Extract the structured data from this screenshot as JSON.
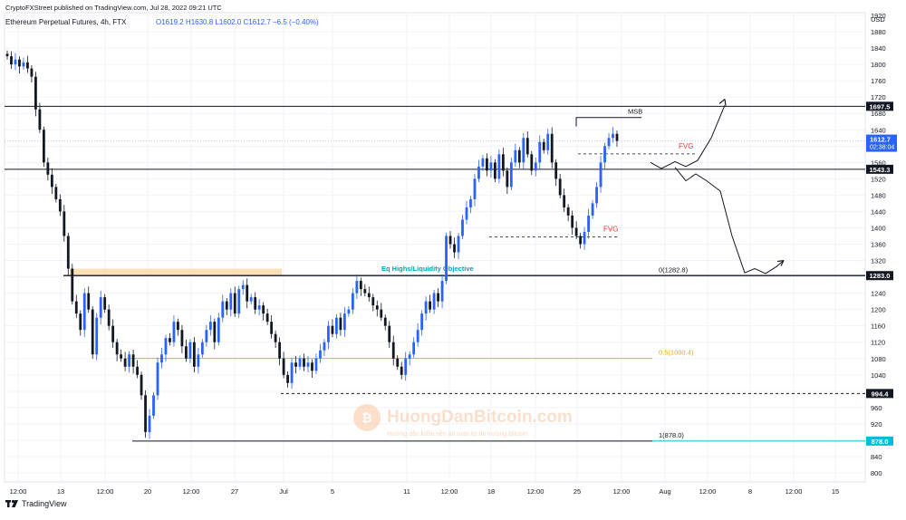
{
  "header": {
    "published": "CryptoFXStreet published on TradingView.com, Jul 28, 2022 09:21 UTC",
    "symbol": "Ethereum Perpetual Futures, 4h, FTX",
    "ohlc": "O1619.2 H1630.8 L1602.0 C1612.7 −6.5 (−0.40%)"
  },
  "footer": {
    "brand": "TradingView",
    "icon": "tradingview-logo-icon"
  },
  "watermark": {
    "brand": "HuongDanBitcoin.com",
    "tagline": "Hướng dẫn kiếm tiền an toàn từ thị trường Bitcoin"
  },
  "colors": {
    "up": "#2962ff",
    "down": "#131722",
    "fvg": "#e53935",
    "fib_050": "#f5a623",
    "zone": "#fcd9a8",
    "cyan": "#00bcd4",
    "price_tag": "#2962ff"
  },
  "chart_data": {
    "type": "line",
    "title": "Ethereum Perpetual Futures, 4h, FTX",
    "currency": "USD",
    "ylim": [
      780,
      1950
    ],
    "y_ticks": [
      800,
      840,
      880,
      920,
      960,
      1000,
      1040,
      1080,
      1120,
      1160,
      1200,
      1240,
      1280,
      1320,
      1360,
      1400,
      1440,
      1480,
      1520,
      1560,
      1600,
      1640,
      1680,
      1720,
      1760,
      1800,
      1840,
      1880,
      1920
    ],
    "x_ticks": [
      "12:00",
      "13",
      "12:00",
      "20",
      "12:00",
      "27",
      "Jul",
      "5",
      "11",
      "12:00",
      "18",
      "12:00",
      "25",
      "12:00",
      "Aug",
      "12:00",
      "8",
      "12:00",
      "15"
    ],
    "series": [
      {
        "values": [
          1820,
          1800,
          1812,
          1795,
          1805,
          1790,
          1770,
          1690,
          1640,
          1560,
          1530,
          1500,
          1470,
          1440,
          1380,
          1300,
          1220,
          1190,
          1150,
          1240,
          1200,
          1090,
          1180,
          1230,
          1200,
          1160,
          1120,
          1090,
          1080,
          1060,
          1090,
          1060,
          1040,
          990,
          900,
          940,
          990,
          1070,
          1090,
          1130,
          1120,
          1170,
          1150,
          1110,
          1080,
          1120,
          1060,
          1090,
          1120,
          1150,
          1170,
          1120,
          1180,
          1220,
          1200,
          1240,
          1190,
          1250,
          1260,
          1220,
          1230,
          1200,
          1210,
          1190,
          1170,
          1140,
          1120,
          1080,
          1040,
          1020,
          1070,
          1060,
          1080,
          1060,
          1070,
          1050,
          1080,
          1100,
          1120,
          1160,
          1140,
          1180,
          1150,
          1190,
          1200,
          1240,
          1270,
          1250,
          1240,
          1230,
          1210,
          1200,
          1180,
          1160,
          1120,
          1080,
          1060,
          1040,
          1080,
          1090,
          1120,
          1150,
          1190,
          1220,
          1200,
          1240,
          1220,
          1270,
          1380,
          1360,
          1340,
          1380,
          1420,
          1450,
          1470,
          1520,
          1550,
          1570,
          1540,
          1560,
          1520,
          1580,
          1540,
          1500,
          1560,
          1590,
          1560,
          1620,
          1580,
          1540,
          1560,
          1610,
          1590,
          1630,
          1560,
          1520,
          1480,
          1450,
          1430,
          1400,
          1380,
          1360,
          1390,
          1430,
          1460,
          1500,
          1560,
          1600,
          1620,
          1630,
          1612.7
        ]
      }
    ],
    "levels": [
      {
        "label": "1697.5",
        "value": 1697.5
      },
      {
        "label": "1543.3",
        "value": 1543.3
      },
      {
        "label": "1283.0",
        "value": 1283.0
      },
      {
        "label": "994.4",
        "value": 994.4
      },
      {
        "label": "878.0",
        "value": 878.0
      }
    ],
    "fib_labels": {
      "f0": "0(1282.8)",
      "f05": "0.5(1080.4)",
      "f1": "1(878.0)"
    },
    "last_price": {
      "value": "1612.7",
      "countdown": "02:38:04"
    },
    "annotations": {
      "msb": "MSB",
      "fvg": "FVG",
      "eq_highs": "Eq Highs/Liquidity Objective"
    },
    "grid": true,
    "legend": "none"
  }
}
